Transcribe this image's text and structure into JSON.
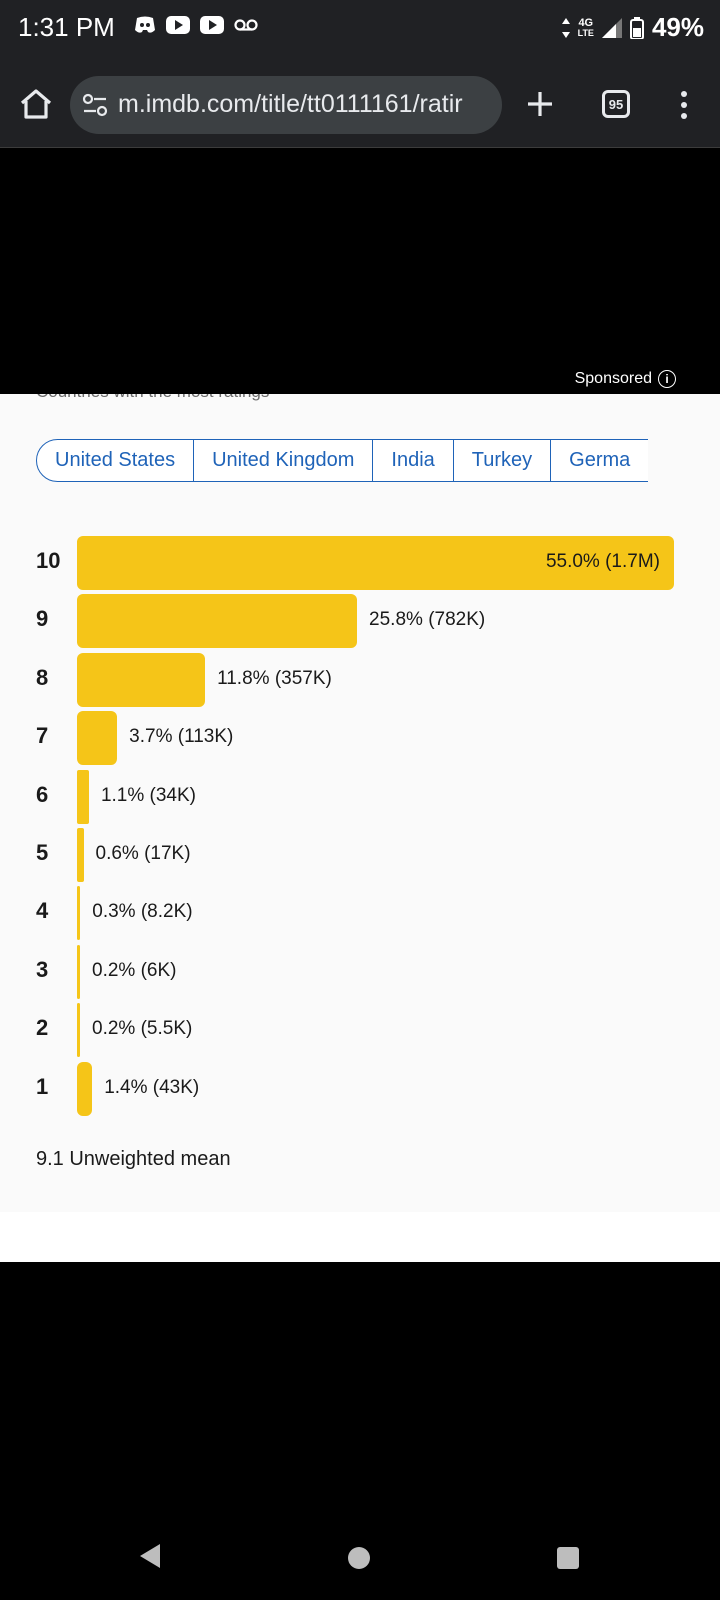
{
  "status_bar": {
    "time": "1:31 PM",
    "network": "4G",
    "network_sub": "LTE",
    "battery": "49%"
  },
  "browser": {
    "url": "m.imdb.com/title/tt0111161/ratir",
    "tab_count": "95"
  },
  "ad": {
    "sponsored_label": "Sponsored",
    "info_glyph": "i"
  },
  "page": {
    "countries_heading": "Countries with the most ratings",
    "country_chips": [
      "United States",
      "United Kingdom",
      "India",
      "Turkey",
      "Germa"
    ],
    "mean_text": "9.1 Unweighted mean"
  },
  "chart_data": {
    "type": "bar",
    "orientation": "horizontal",
    "categories": [
      "10",
      "9",
      "8",
      "7",
      "6",
      "5",
      "4",
      "3",
      "2",
      "1"
    ],
    "values": [
      55.0,
      25.8,
      11.8,
      3.7,
      1.1,
      0.6,
      0.3,
      0.2,
      0.2,
      1.4
    ],
    "labels": [
      "55.0% (1.7M)",
      "25.8% (782K)",
      "11.8% (357K)",
      "3.7% (113K)",
      "1.1% (34K)",
      "0.6% (17K)",
      "0.3% (8.2K)",
      "0.2% (6K)",
      "0.2% (5.5K)",
      "1.4% (43K)"
    ],
    "xlim": [
      0,
      55.0
    ],
    "bar_color": "#f5c518"
  },
  "colors": {
    "accent": "#f5c518",
    "link": "#1f63b8",
    "chrome_bg": "#202124"
  }
}
